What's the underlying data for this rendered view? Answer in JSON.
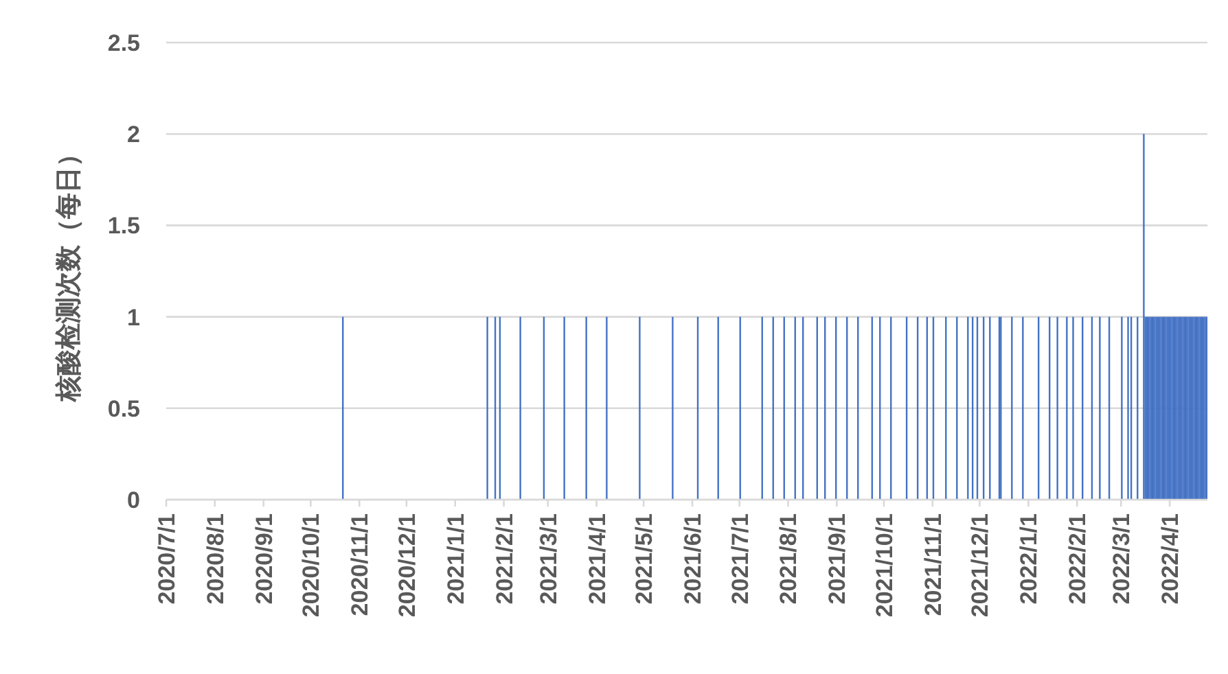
{
  "chart_data": {
    "type": "bar",
    "ylabel": "核酸检测次数（每日）",
    "color": "#4472c4",
    "x": [
      "2020-10-21",
      "2021-01-21",
      "2021-01-26",
      "2021-01-29",
      "2021-02-11",
      "2021-02-26",
      "2021-03-11",
      "2021-03-25",
      "2021-04-07",
      "2021-04-28",
      "2021-05-19",
      "2021-06-04",
      "2021-06-17",
      "2021-07-01",
      "2021-07-15",
      "2021-07-22",
      "2021-07-29",
      "2021-08-05",
      "2021-08-10",
      "2021-08-19",
      "2021-08-24",
      "2021-08-31",
      "2021-09-07",
      "2021-09-14",
      "2021-09-23",
      "2021-09-28",
      "2021-10-05",
      "2021-10-15",
      "2021-10-22",
      "2021-10-28",
      "2021-11-01",
      "2021-11-09",
      "2021-11-16",
      "2021-11-23",
      "2021-11-26",
      "2021-11-29",
      "2021-12-03",
      "2021-12-07",
      "2021-12-13",
      "2021-12-14",
      "2021-12-21",
      "2021-12-28",
      "2022-01-07",
      "2022-01-14",
      "2022-01-19",
      "2022-01-25",
      "2022-01-29",
      "2022-02-04",
      "2022-02-10",
      "2022-02-15",
      "2022-02-21",
      "2022-03-01",
      "2022-03-05",
      "2022-03-07",
      "2022-03-11",
      "2022-03-15",
      "2022-03-16",
      "2022-03-17",
      "2022-03-18",
      "2022-03-19",
      "2022-03-20",
      "2022-03-21",
      "2022-03-22",
      "2022-03-23",
      "2022-03-24",
      "2022-03-25",
      "2022-03-26",
      "2022-03-27",
      "2022-03-28",
      "2022-03-29",
      "2022-03-30",
      "2022-03-31",
      "2022-04-01",
      "2022-04-02",
      "2022-04-03",
      "2022-04-04",
      "2022-04-05",
      "2022-04-06",
      "2022-04-07",
      "2022-04-08",
      "2022-04-09",
      "2022-04-10",
      "2022-04-11",
      "2022-04-12",
      "2022-04-13",
      "2022-04-14",
      "2022-04-15",
      "2022-04-16",
      "2022-04-17",
      "2022-04-18",
      "2022-04-19",
      "2022-04-20",
      "2022-04-21",
      "2022-04-22",
      "2022-04-23",
      "2022-04-24"
    ],
    "values": [
      1,
      1,
      1,
      1,
      1,
      1,
      1,
      1,
      1,
      1,
      1,
      1,
      1,
      1,
      1,
      1,
      1,
      1,
      1,
      1,
      1,
      1,
      1,
      1,
      1,
      1,
      1,
      1,
      1,
      1,
      1,
      1,
      1,
      1,
      1,
      1,
      1,
      1,
      1,
      1,
      1,
      1,
      1,
      1,
      1,
      1,
      1,
      1,
      1,
      1,
      1,
      1,
      1,
      1,
      1,
      2,
      1,
      1,
      1,
      1,
      1,
      1,
      1,
      1,
      1,
      1,
      1,
      1,
      1,
      1,
      1,
      1,
      1,
      1,
      1,
      1,
      1,
      1,
      1,
      1,
      1,
      1,
      1,
      1,
      1,
      1,
      1,
      1,
      1,
      1,
      1,
      1,
      1,
      1,
      1,
      1
    ],
    "xlim": [
      "2020-07-01",
      "2022-04-25"
    ],
    "xticks": [
      {
        "value": "2020-07-01",
        "label": "2020/7/1"
      },
      {
        "value": "2020-08-01",
        "label": "2020/8/1"
      },
      {
        "value": "2020-09-01",
        "label": "2020/9/1"
      },
      {
        "value": "2020-10-01",
        "label": "2020/10/1"
      },
      {
        "value": "2020-11-01",
        "label": "2020/11/1"
      },
      {
        "value": "2020-12-01",
        "label": "2020/12/1"
      },
      {
        "value": "2021-01-01",
        "label": "2021/1/1"
      },
      {
        "value": "2021-02-01",
        "label": "2021/2/1"
      },
      {
        "value": "2021-03-01",
        "label": "2021/3/1"
      },
      {
        "value": "2021-04-01",
        "label": "2021/4/1"
      },
      {
        "value": "2021-05-01",
        "label": "2021/5/1"
      },
      {
        "value": "2021-06-01",
        "label": "2021/6/1"
      },
      {
        "value": "2021-07-01",
        "label": "2021/7/1"
      },
      {
        "value": "2021-08-01",
        "label": "2021/8/1"
      },
      {
        "value": "2021-09-01",
        "label": "2021/9/1"
      },
      {
        "value": "2021-10-01",
        "label": "2021/10/1"
      },
      {
        "value": "2021-11-01",
        "label": "2021/11/1"
      },
      {
        "value": "2021-12-01",
        "label": "2021/12/1"
      },
      {
        "value": "2022-01-01",
        "label": "2022/1/1"
      },
      {
        "value": "2022-02-01",
        "label": "2022/2/1"
      },
      {
        "value": "2022-03-01",
        "label": "2022/3/1"
      },
      {
        "value": "2022-04-01",
        "label": "2022/4/1"
      }
    ],
    "ylim": [
      0,
      2.5
    ],
    "yticks": [
      0,
      0.5,
      1,
      1.5,
      2,
      2.5
    ],
    "grid": "y"
  }
}
